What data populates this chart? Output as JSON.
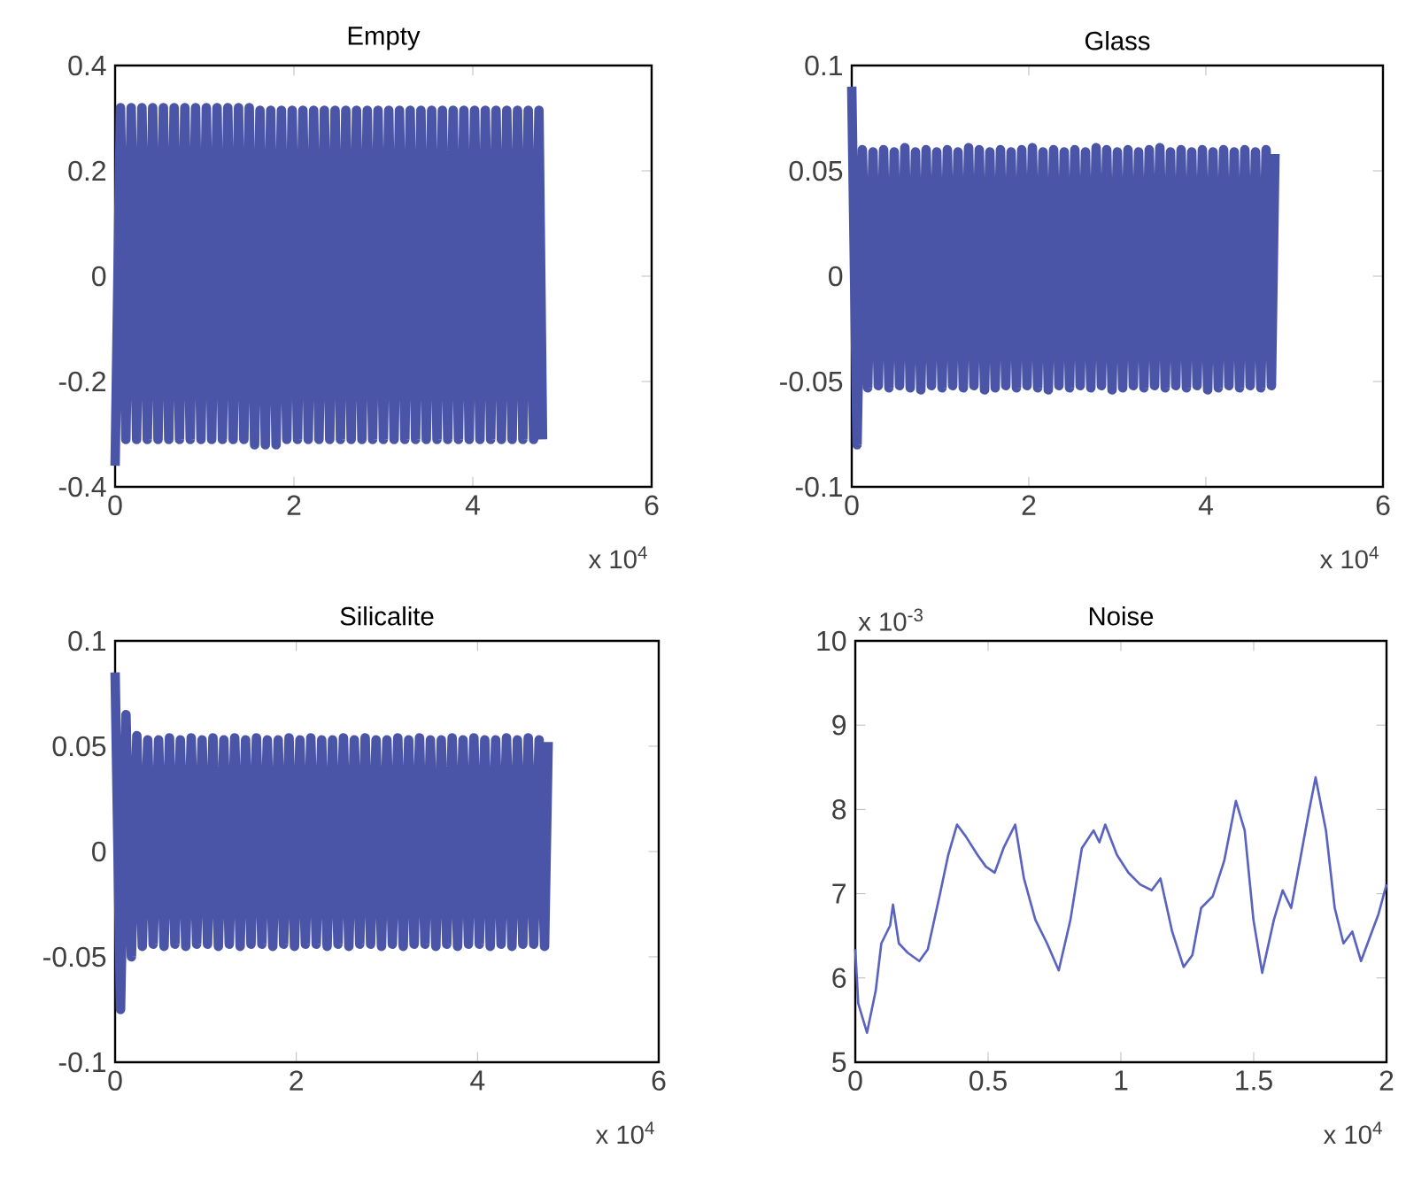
{
  "chart_data": [
    {
      "type": "line",
      "title": "Empty",
      "xlim": [
        0,
        6
      ],
      "ylim": [
        -0.4,
        0.4
      ],
      "xticks": [
        0,
        2,
        4,
        6
      ],
      "yticks": [
        -0.4,
        -0.2,
        0,
        0.2,
        0.4
      ],
      "annotations": [
        "x 10$^{4}$"
      ],
      "series": [
        {
          "color": "#4b55a8",
          "x": [
            0,
            0.06,
            0.12,
            0.18,
            0.24,
            0.3,
            0.36,
            0.42,
            0.48,
            0.54,
            0.6,
            0.66,
            0.72,
            0.78,
            0.84,
            0.9,
            0.96,
            1.02,
            1.08,
            1.14,
            1.2,
            1.26,
            1.32,
            1.38,
            1.44,
            1.5,
            1.56,
            1.62,
            1.68,
            1.74,
            1.8,
            1.86,
            1.92,
            1.98,
            2.04,
            2.1,
            2.16,
            2.22,
            2.28,
            2.34,
            2.4,
            2.46,
            2.52,
            2.58,
            2.64,
            2.7,
            2.76,
            2.82,
            2.88,
            2.94,
            3,
            3.06,
            3.12,
            3.18,
            3.24,
            3.3,
            3.36,
            3.42,
            3.48,
            3.54,
            3.6,
            3.66,
            3.72,
            3.78,
            3.84,
            3.9,
            3.96,
            4.02,
            4.08,
            4.14,
            4.2,
            4.26,
            4.32,
            4.38,
            4.44,
            4.5,
            4.56,
            4.62,
            4.68,
            4.74,
            4.78
          ],
          "values": [
            -0.36,
            0.32,
            -0.31,
            0.32,
            -0.31,
            0.32,
            -0.31,
            0.32,
            -0.31,
            0.32,
            -0.31,
            0.32,
            -0.31,
            0.32,
            -0.31,
            0.32,
            -0.31,
            0.32,
            -0.31,
            0.32,
            -0.31,
            0.32,
            -0.31,
            0.32,
            -0.31,
            0.32,
            -0.32,
            0.315,
            -0.32,
            0.315,
            -0.32,
            0.315,
            -0.31,
            0.315,
            -0.31,
            0.315,
            -0.31,
            0.315,
            -0.31,
            0.315,
            -0.31,
            0.315,
            -0.31,
            0.315,
            -0.31,
            0.315,
            -0.31,
            0.315,
            -0.31,
            0.315,
            -0.31,
            0.315,
            -0.31,
            0.315,
            -0.31,
            0.315,
            -0.31,
            0.315,
            -0.31,
            0.315,
            -0.31,
            0.315,
            -0.31,
            0.315,
            -0.31,
            0.315,
            -0.31,
            0.315,
            -0.31,
            0.315,
            -0.31,
            0.315,
            -0.31,
            0.315,
            -0.31,
            0.315,
            -0.31,
            0.315,
            -0.31,
            0.315,
            -0.31
          ]
        }
      ]
    },
    {
      "type": "line",
      "title": "Glass",
      "xlim": [
        0,
        6
      ],
      "ylim": [
        -0.1,
        0.1
      ],
      "xticks": [
        0,
        2,
        4,
        6
      ],
      "yticks": [
        -0.1,
        -0.05,
        0,
        0.05,
        0.1
      ],
      "annotations": [
        "x 10$^{4}$"
      ],
      "series": [
        {
          "color": "#4b55a8",
          "x": [
            0,
            0.06,
            0.12,
            0.18,
            0.24,
            0.3,
            0.36,
            0.42,
            0.48,
            0.54,
            0.6,
            0.66,
            0.72,
            0.78,
            0.84,
            0.9,
            0.96,
            1.02,
            1.08,
            1.14,
            1.2,
            1.26,
            1.32,
            1.38,
            1.44,
            1.5,
            1.56,
            1.62,
            1.68,
            1.74,
            1.8,
            1.86,
            1.92,
            1.98,
            2.04,
            2.1,
            2.16,
            2.22,
            2.28,
            2.34,
            2.4,
            2.46,
            2.52,
            2.58,
            2.64,
            2.7,
            2.76,
            2.82,
            2.88,
            2.94,
            3,
            3.06,
            3.12,
            3.18,
            3.24,
            3.3,
            3.36,
            3.42,
            3.48,
            3.54,
            3.6,
            3.66,
            3.72,
            3.78,
            3.84,
            3.9,
            3.96,
            4.02,
            4.08,
            4.14,
            4.2,
            4.26,
            4.32,
            4.38,
            4.44,
            4.5,
            4.56,
            4.62,
            4.68,
            4.74,
            4.78
          ],
          "values": [
            0.09,
            -0.08,
            0.06,
            -0.053,
            0.059,
            -0.052,
            0.06,
            -0.053,
            0.059,
            -0.052,
            0.061,
            -0.053,
            0.059,
            -0.054,
            0.06,
            -0.052,
            0.059,
            -0.053,
            0.06,
            -0.052,
            0.059,
            -0.053,
            0.061,
            -0.052,
            0.06,
            -0.054,
            0.059,
            -0.053,
            0.06,
            -0.052,
            0.059,
            -0.053,
            0.06,
            -0.052,
            0.061,
            -0.053,
            0.059,
            -0.054,
            0.06,
            -0.052,
            0.059,
            -0.053,
            0.06,
            -0.052,
            0.059,
            -0.053,
            0.061,
            -0.052,
            0.06,
            -0.054,
            0.059,
            -0.053,
            0.06,
            -0.052,
            0.059,
            -0.053,
            0.06,
            -0.052,
            0.061,
            -0.053,
            0.059,
            -0.052,
            0.06,
            -0.053,
            0.059,
            -0.052,
            0.06,
            -0.054,
            0.059,
            -0.053,
            0.06,
            -0.052,
            0.059,
            -0.053,
            0.06,
            -0.052,
            0.059,
            -0.053,
            0.06,
            -0.052,
            0.058
          ]
        }
      ]
    },
    {
      "type": "line",
      "title": "Silicalite",
      "xlim": [
        0,
        6
      ],
      "ylim": [
        -0.1,
        0.1
      ],
      "xticks": [
        0,
        2,
        4,
        6
      ],
      "yticks": [
        -0.1,
        -0.05,
        0,
        0.05,
        0.1
      ],
      "annotations": [
        "x 10$^{4}$"
      ],
      "series": [
        {
          "color": "#4b55a8",
          "x": [
            0,
            0.06,
            0.12,
            0.18,
            0.24,
            0.3,
            0.36,
            0.42,
            0.48,
            0.54,
            0.6,
            0.66,
            0.72,
            0.78,
            0.84,
            0.9,
            0.96,
            1.02,
            1.08,
            1.14,
            1.2,
            1.26,
            1.32,
            1.38,
            1.44,
            1.5,
            1.56,
            1.62,
            1.68,
            1.74,
            1.8,
            1.86,
            1.92,
            1.98,
            2.04,
            2.1,
            2.16,
            2.22,
            2.28,
            2.34,
            2.4,
            2.46,
            2.52,
            2.58,
            2.64,
            2.7,
            2.76,
            2.82,
            2.88,
            2.94,
            3,
            3.06,
            3.12,
            3.18,
            3.24,
            3.3,
            3.36,
            3.42,
            3.48,
            3.54,
            3.6,
            3.66,
            3.72,
            3.78,
            3.84,
            3.9,
            3.96,
            4.02,
            4.08,
            4.14,
            4.2,
            4.26,
            4.32,
            4.38,
            4.44,
            4.5,
            4.56,
            4.62,
            4.68,
            4.74,
            4.78
          ],
          "values": [
            0.085,
            -0.075,
            0.065,
            -0.05,
            0.055,
            -0.045,
            0.053,
            -0.044,
            0.053,
            -0.045,
            0.054,
            -0.044,
            0.053,
            -0.045,
            0.054,
            -0.044,
            0.053,
            -0.044,
            0.054,
            -0.045,
            0.053,
            -0.044,
            0.054,
            -0.045,
            0.053,
            -0.044,
            0.054,
            -0.044,
            0.053,
            -0.045,
            0.053,
            -0.044,
            0.054,
            -0.045,
            0.053,
            -0.044,
            0.054,
            -0.044,
            0.053,
            -0.045,
            0.053,
            -0.044,
            0.054,
            -0.045,
            0.053,
            -0.044,
            0.054,
            -0.044,
            0.053,
            -0.045,
            0.053,
            -0.044,
            0.054,
            -0.045,
            0.053,
            -0.044,
            0.054,
            -0.044,
            0.053,
            -0.045,
            0.053,
            -0.044,
            0.054,
            -0.045,
            0.053,
            -0.044,
            0.054,
            -0.044,
            0.053,
            -0.045,
            0.053,
            -0.044,
            0.054,
            -0.045,
            0.053,
            -0.044,
            0.054,
            -0.044,
            0.053,
            -0.045,
            0.052
          ]
        }
      ]
    },
    {
      "type": "line",
      "title": "Noise",
      "xlim": [
        0,
        2
      ],
      "ylim": [
        5,
        10
      ],
      "xticks": [
        0,
        0.5,
        1,
        1.5,
        2
      ],
      "yticks": [
        5,
        6,
        7,
        8,
        9,
        10
      ],
      "annotations": [
        "x 10$^{4}$",
        "x 10$^{-3}$"
      ],
      "series": [
        {
          "color": "#5a64c0",
          "x": [
            0,
            0.011,
            0.044,
            0.077,
            0.098,
            0.131,
            0.142,
            0.164,
            0.197,
            0.241,
            0.273,
            0.317,
            0.35,
            0.383,
            0.416,
            0.46,
            0.492,
            0.525,
            0.558,
            0.602,
            0.635,
            0.678,
            0.722,
            0.766,
            0.81,
            0.853,
            0.897,
            0.919,
            0.941,
            0.985,
            1.028,
            1.072,
            1.116,
            1.149,
            1.193,
            1.236,
            1.269,
            1.302,
            1.346,
            1.389,
            1.433,
            1.466,
            1.499,
            1.532,
            1.576,
            1.609,
            1.641,
            1.674,
            1.707,
            1.733,
            1.772,
            1.805,
            1.838,
            1.871,
            1.904,
            1.937,
            1.97,
            2
          ],
          "values": [
            6.34,
            5.7,
            5.35,
            5.85,
            6.41,
            6.62,
            6.87,
            6.41,
            6.3,
            6.2,
            6.34,
            6.97,
            7.46,
            7.82,
            7.68,
            7.46,
            7.32,
            7.25,
            7.54,
            7.82,
            7.18,
            6.69,
            6.41,
            6.09,
            6.69,
            7.54,
            7.75,
            7.61,
            7.82,
            7.46,
            7.25,
            7.11,
            7.04,
            7.18,
            6.55,
            6.13,
            6.27,
            6.83,
            6.97,
            7.39,
            8.1,
            7.75,
            6.69,
            6.06,
            6.69,
            7.04,
            6.83,
            7.39,
            7.96,
            8.38,
            7.75,
            6.83,
            6.41,
            6.55,
            6.2,
            6.48,
            6.76,
            7.11
          ]
        }
      ]
    }
  ]
}
